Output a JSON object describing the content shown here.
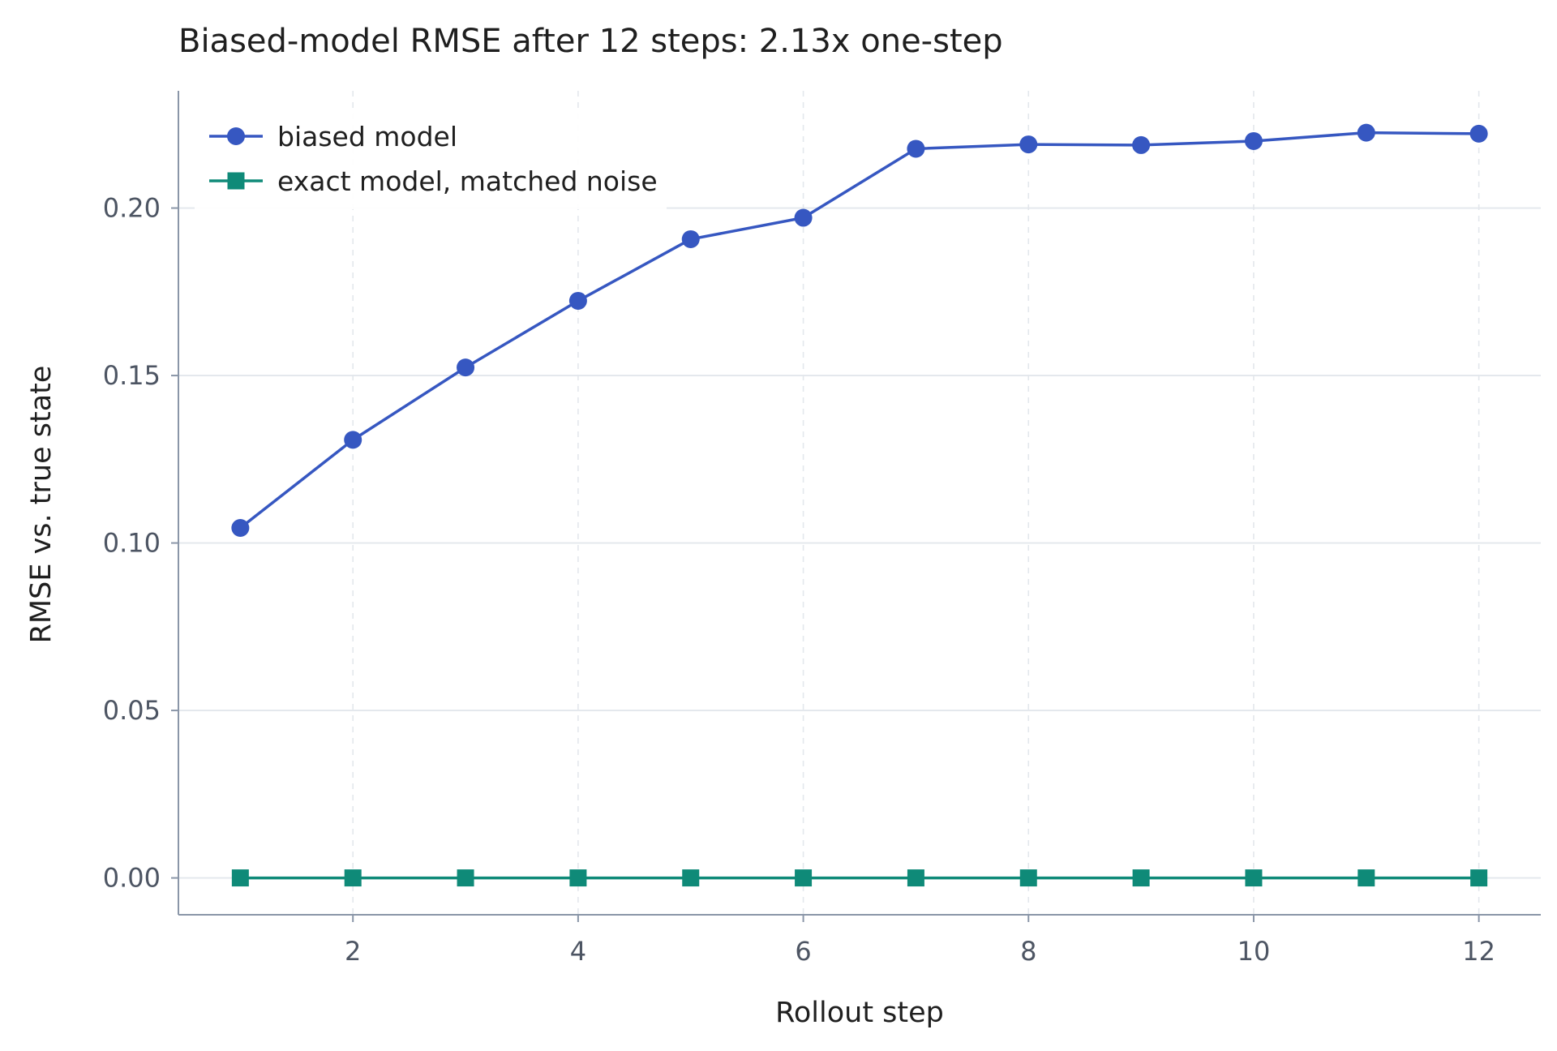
{
  "chart_data": {
    "type": "line",
    "title": "Biased-model RMSE after 12 steps: 2.13x one-step",
    "xlabel": "Rollout step",
    "ylabel": "RMSE vs. true state",
    "xlim": [
      0.45,
      12.55
    ],
    "ylim": [
      -0.011,
      0.235
    ],
    "x_ticks": [
      2,
      4,
      6,
      8,
      10,
      12
    ],
    "x_tick_labels": [
      "2",
      "4",
      "6",
      "8",
      "10",
      "12"
    ],
    "y_ticks": [
      0.0,
      0.05,
      0.1,
      0.15,
      0.2
    ],
    "y_tick_labels": [
      "0.00",
      "0.05",
      "0.10",
      "0.15",
      "0.20"
    ],
    "grid": true,
    "legend_position": "top-left",
    "x": [
      1,
      2,
      3,
      4,
      5,
      6,
      7,
      8,
      9,
      10,
      11,
      12
    ],
    "series": [
      {
        "name": "biased model",
        "color": "#3657c1",
        "marker": "circle",
        "values": [
          0.1045,
          0.1308,
          0.1524,
          0.1723,
          0.1907,
          0.1971,
          0.2177,
          0.219,
          0.2188,
          0.22,
          0.2225,
          0.2222
        ]
      },
      {
        "name": "exact model, matched noise",
        "color": "#0f8a78",
        "marker": "square",
        "values": [
          0,
          0,
          0,
          0,
          0,
          0,
          0,
          0,
          0,
          0,
          0,
          0
        ]
      }
    ]
  }
}
